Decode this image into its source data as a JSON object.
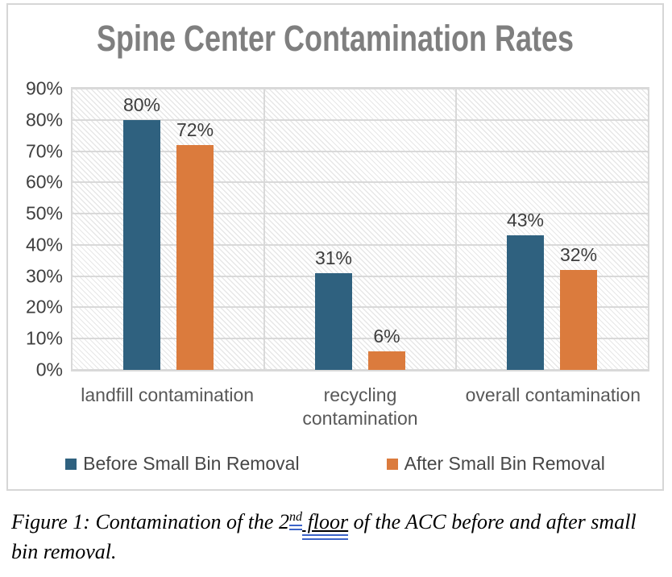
{
  "chart_data": {
    "type": "bar",
    "title": "Spine Center Contamination Rates",
    "categories": [
      "landfill contamination",
      "recycling\ncontamination",
      "overall contamination"
    ],
    "series": [
      {
        "name": "Before Small Bin Removal",
        "color": "#2F617F",
        "values": [
          80,
          31,
          43
        ]
      },
      {
        "name": "After Small Bin Removal",
        "color": "#DB7B3D",
        "values": [
          72,
          6,
          32
        ]
      }
    ],
    "data_labels": [
      [
        "80%",
        "31%",
        "43%"
      ],
      [
        "72%",
        "6%",
        "32%"
      ]
    ],
    "ylabel": "",
    "xlabel": "",
    "ylim": [
      0,
      90
    ],
    "ytick_step": 10,
    "ytick_labels": [
      "0%",
      "10%",
      "20%",
      "30%",
      "40%",
      "50%",
      "60%",
      "70%",
      "80%",
      "90%"
    ],
    "grid": "horizontal gridlines + vertical category separators, hatched plot background",
    "legend_position": "bottom"
  },
  "caption": {
    "prefix": "Figure 1: Contamination of the 2",
    "superscript": "nd",
    "underlined_text": " floor",
    "suffix": " of the ACC before and after small bin removal."
  }
}
